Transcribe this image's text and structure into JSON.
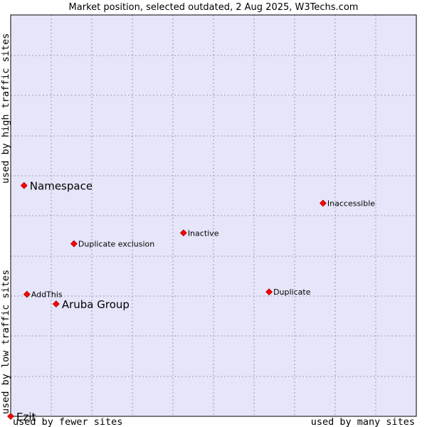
{
  "chart_data": {
    "type": "scatter",
    "title": "Market position, selected outdated, 2 Aug 2025, W3Techs.com",
    "xlabel_left": "used by fewer sites",
    "xlabel_right": "used by many sites",
    "ylabel_bottom": "used by low traffic sites",
    "ylabel_top": "used by high traffic sites",
    "xlim": [
      0,
      100
    ],
    "ylim": [
      0,
      100
    ],
    "grid": true,
    "colors": {
      "background": "#e6e6fa",
      "marker": "#ff0000",
      "border": "#000000"
    },
    "points": [
      {
        "label": "Namespace",
        "x": 3.3,
        "y": 57.5,
        "size": "large"
      },
      {
        "label": "Inaccessible",
        "x": 77.0,
        "y": 53.1,
        "size": "small"
      },
      {
        "label": "Inactive",
        "x": 42.6,
        "y": 45.7,
        "size": "small"
      },
      {
        "label": "Duplicate exclusion",
        "x": 15.6,
        "y": 43.0,
        "size": "small"
      },
      {
        "label": "AddThis",
        "x": 4.0,
        "y": 30.4,
        "size": "small"
      },
      {
        "label": "Duplicate",
        "x": 63.7,
        "y": 31.0,
        "size": "small"
      },
      {
        "label": "Aruba Group",
        "x": 11.2,
        "y": 28.0,
        "size": "large"
      },
      {
        "label": "Ezit",
        "x": 0.0,
        "y": 0.0,
        "size": "large"
      }
    ]
  }
}
